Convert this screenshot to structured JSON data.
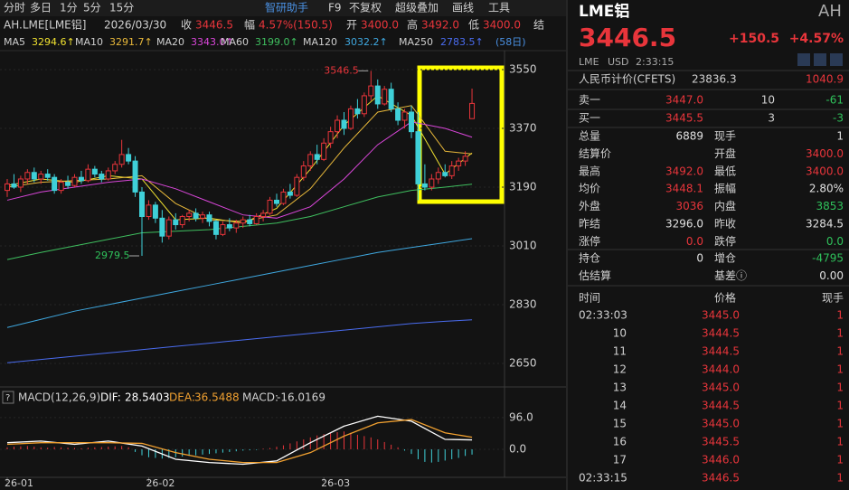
{
  "toolbar": {
    "tabs": [
      "分时",
      "多日",
      "1分",
      "5分",
      "15分"
    ],
    "tools": [
      "智研助手",
      "F9",
      "不复权",
      "超级叠加",
      "画线",
      "工具"
    ]
  },
  "info": {
    "symbol": "AH.LME[LME铝]",
    "date": "2026/03/30",
    "fields": [
      {
        "label": "收",
        "value": "3446.5"
      },
      {
        "label": "幅",
        "value": "4.57%(150.5)"
      },
      {
        "label": "开",
        "value": "3400.0"
      },
      {
        "label": "高",
        "value": "3492.0"
      },
      {
        "label": "低",
        "value": "3400.0"
      },
      {
        "label": "结"
      }
    ]
  },
  "chart": {
    "type": "candlestick",
    "up_color": "#e8353b",
    "down_color": "#3fd0d8",
    "ylim": [
      2600,
      3600
    ],
    "yticks": [
      3550,
      3370,
      3190,
      3010,
      2830,
      2650
    ],
    "grid": true,
    "xticks": [
      {
        "value": 0,
        "label": "26-01"
      },
      {
        "value": 21,
        "label": "26-02"
      },
      {
        "value": 47,
        "label": "26-03"
      }
    ],
    "period": "(58日)",
    "annotated_candles": [
      54,
      20
    ],
    "candles": [
      [
        3180,
        3215,
        3160,
        3200
      ],
      [
        3200,
        3230,
        3185,
        3190
      ],
      [
        3190,
        3225,
        3175,
        3215
      ],
      [
        3215,
        3245,
        3200,
        3235
      ],
      [
        3235,
        3250,
        3205,
        3215
      ],
      [
        3215,
        3240,
        3200,
        3230
      ],
      [
        3230,
        3245,
        3210,
        3220
      ],
      [
        3220,
        3230,
        3170,
        3180
      ],
      [
        3180,
        3215,
        3170,
        3205
      ],
      [
        3205,
        3225,
        3185,
        3195
      ],
      [
        3195,
        3230,
        3190,
        3220
      ],
      [
        3220,
        3240,
        3200,
        3210
      ],
      [
        3210,
        3260,
        3205,
        3245
      ],
      [
        3245,
        3255,
        3220,
        3230
      ],
      [
        3230,
        3240,
        3205,
        3215
      ],
      [
        3215,
        3250,
        3210,
        3240
      ],
      [
        3240,
        3270,
        3230,
        3260
      ],
      [
        3260,
        3335,
        3250,
        3290
      ],
      [
        3290,
        3310,
        3260,
        3270
      ],
      [
        3270,
        3285,
        3160,
        3175
      ],
      [
        3175,
        3190,
        2979.5,
        3100
      ],
      [
        3100,
        3150,
        3090,
        3135
      ],
      [
        3135,
        3145,
        3080,
        3095
      ],
      [
        3095,
        3120,
        3020,
        3040
      ],
      [
        3040,
        3100,
        3030,
        3090
      ],
      [
        3090,
        3110,
        3060,
        3075
      ],
      [
        3075,
        3105,
        3065,
        3100
      ],
      [
        3100,
        3120,
        3085,
        3110
      ],
      [
        3110,
        3125,
        3085,
        3095
      ],
      [
        3095,
        3115,
        3080,
        3105
      ],
      [
        3105,
        3115,
        3070,
        3085
      ],
      [
        3085,
        3090,
        3030,
        3045
      ],
      [
        3045,
        3085,
        3040,
        3075
      ],
      [
        3075,
        3095,
        3055,
        3065
      ],
      [
        3065,
        3090,
        3050,
        3080
      ],
      [
        3080,
        3100,
        3065,
        3090
      ],
      [
        3090,
        3105,
        3070,
        3078
      ],
      [
        3078,
        3110,
        3075,
        3100
      ],
      [
        3100,
        3120,
        3085,
        3110
      ],
      [
        3110,
        3160,
        3105,
        3150
      ],
      [
        3150,
        3170,
        3130,
        3140
      ],
      [
        3140,
        3185,
        3135,
        3175
      ],
      [
        3175,
        3200,
        3155,
        3165
      ],
      [
        3165,
        3230,
        3160,
        3220
      ],
      [
        3220,
        3270,
        3210,
        3255
      ],
      [
        3255,
        3300,
        3240,
        3290
      ],
      [
        3290,
        3320,
        3260,
        3275
      ],
      [
        3275,
        3340,
        3270,
        3325
      ],
      [
        3325,
        3375,
        3310,
        3360
      ],
      [
        3360,
        3410,
        3340,
        3395
      ],
      [
        3395,
        3420,
        3350,
        3370
      ],
      [
        3370,
        3440,
        3365,
        3430
      ],
      [
        3430,
        3460,
        3400,
        3415
      ],
      [
        3415,
        3480,
        3405,
        3470
      ],
      [
        3470,
        3546.5,
        3455,
        3500
      ],
      [
        3500,
        3520,
        3430,
        3445
      ],
      [
        3445,
        3500,
        3440,
        3490
      ],
      [
        3490,
        3510,
        3420,
        3430
      ],
      [
        3430,
        3450,
        3380,
        3395
      ],
      [
        3395,
        3430,
        3370,
        3420
      ],
      [
        3420,
        3440,
        3340,
        3360
      ],
      [
        3360,
        3420,
        3150,
        3200
      ],
      [
        3200,
        3260,
        3180,
        3190
      ],
      [
        3190,
        3230,
        3180,
        3215
      ],
      [
        3215,
        3250,
        3200,
        3235
      ],
      [
        3235,
        3260,
        3220,
        3225
      ],
      [
        3225,
        3270,
        3215,
        3255
      ],
      [
        3255,
        3280,
        3240,
        3270
      ],
      [
        3270,
        3300,
        3255,
        3284.5
      ],
      [
        3400,
        3492,
        3400,
        3446.5
      ]
    ],
    "ma_x": [
      0,
      5,
      10,
      15,
      20,
      25,
      30,
      35,
      40,
      45,
      50,
      55,
      60,
      65,
      69
    ],
    "ma_series": [
      {
        "name": "MA5",
        "value_label": "3294.6↑",
        "color": "#f0e130",
        "values": [
          3195,
          3215,
          3205,
          3225,
          3215,
          3090,
          3095,
          3080,
          3125,
          3245,
          3380,
          3470,
          3410,
          3230,
          3294.6
        ]
      },
      {
        "name": "MA10",
        "value_label": "3291.7↑",
        "color": "#e8b83a",
        "values": [
          3190,
          3205,
          3210,
          3215,
          3225,
          3140,
          3090,
          3085,
          3105,
          3185,
          3310,
          3420,
          3440,
          3300,
          3291.7
        ]
      },
      {
        "name": "MA20",
        "value_label": "3343.0↑",
        "color": "#d946d9",
        "values": [
          3150,
          3175,
          3190,
          3205,
          3215,
          3185,
          3145,
          3105,
          3095,
          3130,
          3215,
          3320,
          3390,
          3370,
          3343.0
        ]
      },
      {
        "name": "MA60",
        "value_label": "3199.0↑",
        "color": "#3fbf5f",
        "values": [
          2968,
          2990,
          3010,
          3030,
          3050,
          3055,
          3060,
          3070,
          3080,
          3100,
          3130,
          3160,
          3180,
          3190,
          3199.0
        ]
      },
      {
        "name": "MA120",
        "value_label": "3032.2↑",
        "color": "#3fa8e0",
        "values": [
          2760,
          2785,
          2810,
          2830,
          2850,
          2870,
          2890,
          2910,
          2930,
          2950,
          2970,
          2990,
          3005,
          3020,
          3032.2
        ]
      },
      {
        "name": "MA250",
        "value_label": "2783.5↑",
        "color": "#4a6cf0",
        "values": [
          2652,
          2662,
          2672,
          2682,
          2692,
          2702,
          2712,
          2722,
          2732,
          2742,
          2752,
          2762,
          2772,
          2779,
          2783.5
        ]
      }
    ]
  },
  "macd": {
    "help": "?",
    "title": "MACD(12,26,9)",
    "ylim": [
      -82,
      123
    ],
    "yticks": [
      {
        "value": 96,
        "label": "96.0"
      },
      {
        "value": 0,
        "label": "0.0"
      }
    ],
    "x": [
      0,
      5,
      10,
      15,
      20,
      25,
      30,
      35,
      40,
      45,
      50,
      55,
      60,
      65,
      69
    ],
    "series": [
      {
        "name": "DIF:",
        "value_label": "28.5403",
        "color": "#ffffff",
        "values": [
          20,
          25,
          15,
          25,
          10,
          -30,
          -40,
          -45,
          -35,
          20,
          70,
          100,
          85,
          30,
          28.5403
        ]
      },
      {
        "name": "DEA:",
        "value_label": "36.5488",
        "color": "#f0a030",
        "values": [
          15,
          20,
          20,
          20,
          18,
          -10,
          -30,
          -40,
          -40,
          -10,
          40,
          80,
          90,
          50,
          36.5488
        ]
      }
    ],
    "hist_name": "MACD:",
    "hist_label": "-16.0169",
    "histogram": [
      6,
      8,
      9,
      10,
      8,
      6,
      5,
      7,
      6,
      5,
      4,
      3,
      5,
      6,
      7,
      8,
      9,
      10,
      6,
      -8,
      -18,
      -24,
      -26,
      -28,
      -26,
      -24,
      -22,
      -20,
      -18,
      -16,
      -14,
      -12,
      -10,
      -8,
      -6,
      -4,
      -3,
      -2,
      2,
      4,
      8,
      12,
      18,
      24,
      30,
      36,
      42,
      46,
      50,
      52,
      54,
      50,
      44,
      40,
      36,
      30,
      22,
      14,
      6,
      -4,
      -14,
      -30,
      -38,
      -40,
      -38,
      -34,
      -30,
      -26,
      -20,
      -16.0169
    ]
  },
  "side": {
    "name": "LME铝",
    "tag": "AH",
    "price": "3446.5",
    "change": "+150.5",
    "pct": "+4.57%",
    "exchange": "LME",
    "currency": "USD",
    "time": "2:33:15",
    "cny_label": "人民币计价(CFETS)",
    "cny_price": "23836.3",
    "cny_change": "1040.9",
    "book": [
      {
        "label": "卖一",
        "price": "3447.0",
        "volume": 10,
        "change": -61
      },
      {
        "label": "买一",
        "price": "3445.5",
        "volume": 3,
        "change": -3
      }
    ],
    "stats": [
      [
        {
          "label": "总量",
          "value": "6889"
        },
        {
          "label": "现手",
          "value": "1"
        }
      ],
      [
        {
          "label": "结算价"
        },
        {
          "label": "开盘",
          "value": "3400.0",
          "color": "#e8353b"
        }
      ],
      [
        {
          "label": "最高",
          "value": "3492.0",
          "color": "#e8353b"
        },
        {
          "label": "最低",
          "value": "3400.0",
          "color": "#e8353b"
        }
      ],
      [
        {
          "label": "均价",
          "value": "3448.1",
          "color": "#e8353b"
        },
        {
          "label": "振幅",
          "value": "2.80%"
        }
      ],
      [
        {
          "label": "外盘",
          "value": "3036",
          "color": "#e8353b"
        },
        {
          "label": "内盘",
          "value": "3853",
          "color": "#2fc25b"
        }
      ],
      [
        {
          "label": "昨结",
          "value": "3296.0"
        },
        {
          "label": "昨收",
          "value": "3284.5"
        }
      ],
      [
        {
          "label": "涨停",
          "value": "0.0",
          "color": "#e8353b"
        },
        {
          "label": "跌停",
          "value": "0.0",
          "color": "#2fc25b"
        }
      ]
    ],
    "stats2": [
      [
        {
          "label": "持仓",
          "value": "0"
        },
        {
          "label": "增仓",
          "value": "-4795",
          "color": "#2fc25b"
        }
      ],
      [
        {
          "label": "估结算"
        },
        {
          "label": "基差ⓘ",
          "value": "0.00"
        }
      ]
    ],
    "ticks_header": [
      "时间",
      "价格",
      "现手"
    ],
    "ticks": [
      [
        "02:33:03",
        "3445.0",
        1
      ],
      [
        "10",
        "3444.5",
        1
      ],
      [
        "11",
        "3444.5",
        1
      ],
      [
        "12",
        "3444.0",
        1
      ],
      [
        "13",
        "3445.0",
        1
      ],
      [
        "14",
        "3444.5",
        1
      ],
      [
        "15",
        "3445.0",
        1
      ],
      [
        "16",
        "3445.5",
        1
      ],
      [
        "17",
        "3446.0",
        1
      ],
      [
        "02:33:15",
        "3446.5",
        1
      ]
    ]
  }
}
